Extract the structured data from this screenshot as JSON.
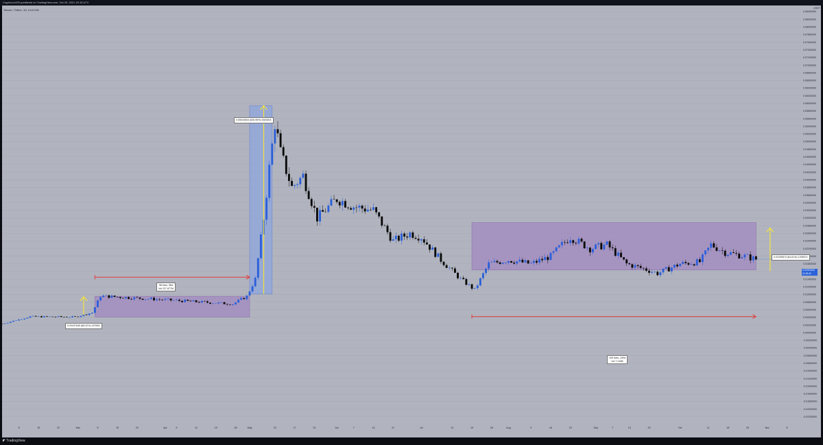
{
  "header": {
    "publisher": "CryptoLuc003 published on TradingView.com, Oct 29, 2021 20:15 UTC",
    "symbol": "Telcoin / Tether, 1D, KUCOIN"
  },
  "footer": {
    "logo_text": "TradingView"
  },
  "price_axis": {
    "currency": "USDT",
    "current_price_badge": [
      "0.01921942",
      "11:45:41"
    ]
  },
  "annotations": {
    "left_range": "0.00437845 (88.42%) 437845",
    "left_measure": [
      "56 bars, 56d",
      "Vol 227.877M"
    ],
    "pump": "0.05043504 (526.95%) 5043504",
    "right_range": "0.01205574 (64.61%) 1205574",
    "right_measure": [
      "100 bars, 100d",
      "Vol 7.216B"
    ]
  },
  "colors": {
    "background": "#b1b4bf",
    "up_candle": "#2b5fd9",
    "down_candle": "#0a0a0a",
    "range_box": "#a48cc1",
    "pump_box": "#8fa6dc",
    "arrow_yellow": "#f5e33a",
    "arrow_red": "#e23a3a",
    "price_badge": "#2b62d9"
  },
  "chart_data": {
    "type": "candlestick",
    "title": "Telcoin / Tether, 1D, KUCOIN",
    "ylim": [
      -0.0242,
      0.0856
    ],
    "y_ticks": [
      "0.08600000",
      "0.08400000",
      "0.08200000",
      "0.08000000",
      "0.07800000",
      "0.07600000",
      "0.07400000",
      "0.07200000",
      "0.07000000",
      "0.06800000",
      "0.06600000",
      "0.06400000",
      "0.06200000",
      "0.06000000",
      "0.05800000",
      "0.05600000",
      "0.05400000",
      "0.05200000",
      "0.05000000",
      "0.04800000",
      "0.04600000",
      "0.04400000",
      "0.04200000",
      "0.04000000",
      "0.03800000",
      "0.03600000",
      "0.03400000",
      "0.03200000",
      "0.03000000",
      "0.02800000",
      "0.02600000",
      "0.02400000",
      "0.02200000",
      "0.02000000",
      "0.01800000",
      "0.01600000",
      "0.01400000",
      "0.01200000",
      "0.01000000",
      "0.00800000",
      "0.00600000",
      "0.00400000",
      "0.00200000",
      "0.00000000",
      "-0.00200000",
      "-0.00400000",
      "-0.00600000",
      "-0.00800000",
      "-0.01000000",
      "-0.01200000",
      "-0.01400000",
      "-0.01600000",
      "-0.01800000",
      "-0.02000000",
      "-0.02200000"
    ],
    "x_ticks": [
      {
        "label": "8",
        "date": "2021-02-08"
      },
      {
        "label": "15",
        "date": "2021-02-15"
      },
      {
        "label": "22",
        "date": "2021-02-22"
      },
      {
        "label": "Mar",
        "date": "2021-03-01"
      },
      {
        "label": "8",
        "date": "2021-03-08"
      },
      {
        "label": "15",
        "date": "2021-03-15"
      },
      {
        "label": "22",
        "date": "2021-03-22"
      },
      {
        "label": "Apr",
        "date": "2021-04-01"
      },
      {
        "label": "5",
        "date": "2021-04-05"
      },
      {
        "label": "12",
        "date": "2021-04-12"
      },
      {
        "label": "19",
        "date": "2021-04-19"
      },
      {
        "label": "26",
        "date": "2021-04-26"
      },
      {
        "label": "May",
        "date": "2021-05-01"
      },
      {
        "label": "10",
        "date": "2021-05-10"
      },
      {
        "label": "17",
        "date": "2021-05-17"
      },
      {
        "label": "24",
        "date": "2021-05-24"
      },
      {
        "label": "Jun",
        "date": "2021-06-01"
      },
      {
        "label": "7",
        "date": "2021-06-07"
      },
      {
        "label": "14",
        "date": "2021-06-14"
      },
      {
        "label": "21",
        "date": "2021-06-21"
      },
      {
        "label": "Jul",
        "date": "2021-07-01"
      },
      {
        "label": "12",
        "date": "2021-07-12"
      },
      {
        "label": "19",
        "date": "2021-07-19"
      },
      {
        "label": "26",
        "date": "2021-07-26"
      },
      {
        "label": "Aug",
        "date": "2021-08-01"
      },
      {
        "label": "9",
        "date": "2021-08-09"
      },
      {
        "label": "16",
        "date": "2021-08-16"
      },
      {
        "label": "23",
        "date": "2021-08-23"
      },
      {
        "label": "Sep",
        "date": "2021-09-01"
      },
      {
        "label": "7",
        "date": "2021-09-07"
      },
      {
        "label": "13",
        "date": "2021-09-13"
      },
      {
        "label": "20",
        "date": "2021-09-20"
      },
      {
        "label": "Oct",
        "date": "2021-10-01"
      },
      {
        "label": "11",
        "date": "2021-10-11"
      },
      {
        "label": "18",
        "date": "2021-10-18"
      },
      {
        "label": "25",
        "date": "2021-10-25"
      },
      {
        "label": "Nov",
        "date": "2021-11-01"
      },
      {
        "label": "8",
        "date": "2021-11-08"
      }
    ],
    "xlim": [
      "2021-02-02",
      "2021-11-13"
    ],
    "key_points": [
      {
        "x": "2021-02-02",
        "y": 0.0023
      },
      {
        "x": "2021-02-12",
        "y": 0.0042
      },
      {
        "x": "2021-02-28",
        "y": 0.0041
      },
      {
        "x": "2021-03-06",
        "y": 0.0052
      },
      {
        "x": "2021-03-09",
        "y": 0.0096
      },
      {
        "x": "2021-04-25",
        "y": 0.0075
      },
      {
        "x": "2021-04-30",
        "y": 0.0095
      },
      {
        "x": "2021-05-03",
        "y": 0.014
      },
      {
        "x": "2021-05-06",
        "y": 0.03
      },
      {
        "x": "2021-05-08",
        "y": 0.043
      },
      {
        "x": "2021-05-10",
        "y": 0.055
      },
      {
        "x": "2021-05-12",
        "y": 0.047
      },
      {
        "x": "2021-05-16",
        "y": 0.038
      },
      {
        "x": "2021-05-20",
        "y": 0.041
      },
      {
        "x": "2021-05-25",
        "y": 0.03
      },
      {
        "x": "2021-06-01",
        "y": 0.035
      },
      {
        "x": "2021-06-07",
        "y": 0.033
      },
      {
        "x": "2021-06-14",
        "y": 0.032
      },
      {
        "x": "2021-06-21",
        "y": 0.024
      },
      {
        "x": "2021-06-27",
        "y": 0.026
      },
      {
        "x": "2021-07-01",
        "y": 0.025
      },
      {
        "x": "2021-07-08",
        "y": 0.019
      },
      {
        "x": "2021-07-15",
        "y": 0.014
      },
      {
        "x": "2021-07-20",
        "y": 0.0112
      },
      {
        "x": "2021-07-25",
        "y": 0.018
      },
      {
        "x": "2021-08-01",
        "y": 0.019
      },
      {
        "x": "2021-08-09",
        "y": 0.018
      },
      {
        "x": "2021-08-16",
        "y": 0.02
      },
      {
        "x": "2021-08-20",
        "y": 0.023
      },
      {
        "x": "2021-08-23",
        "y": 0.025
      },
      {
        "x": "2021-08-30",
        "y": 0.022
      },
      {
        "x": "2021-09-05",
        "y": 0.023
      },
      {
        "x": "2021-09-12",
        "y": 0.018
      },
      {
        "x": "2021-09-19",
        "y": 0.0165
      },
      {
        "x": "2021-09-23",
        "y": 0.0155
      },
      {
        "x": "2021-10-01",
        "y": 0.018
      },
      {
        "x": "2021-10-08",
        "y": 0.0185
      },
      {
        "x": "2021-10-12",
        "y": 0.023
      },
      {
        "x": "2021-10-17",
        "y": 0.021
      },
      {
        "x": "2021-10-24",
        "y": 0.02
      },
      {
        "x": "2021-10-28",
        "y": 0.0192
      }
    ],
    "boxes": [
      {
        "from": "2021-03-07",
        "to": "2021-05-01",
        "low": 0.0041,
        "high": 0.0095,
        "color": "range"
      },
      {
        "from": "2021-05-01",
        "to": "2021-05-09",
        "low": 0.0101,
        "high": 0.0594,
        "color": "pump"
      },
      {
        "from": "2021-07-19",
        "to": "2021-10-28",
        "low": 0.0164,
        "high": 0.0288,
        "color": "range"
      }
    ],
    "arrows": [
      {
        "kind": "yellow-up",
        "x": "2021-03-03",
        "from": 0.0046,
        "to": 0.0094
      },
      {
        "kind": "red-right",
        "y": 0.0145,
        "from": "2021-03-07",
        "to": "2021-05-01"
      },
      {
        "kind": "yellow-up",
        "x": "2021-05-06",
        "from": 0.0101,
        "to": 0.0594
      },
      {
        "kind": "yellow-up",
        "x": "2021-11-02",
        "from": 0.0161,
        "to": 0.0274
      },
      {
        "kind": "red-right",
        "y": 0.0042,
        "from": "2021-07-19",
        "to": "2021-10-28"
      }
    ],
    "current_price": 0.01921942,
    "legend": "none",
    "grid": true
  }
}
